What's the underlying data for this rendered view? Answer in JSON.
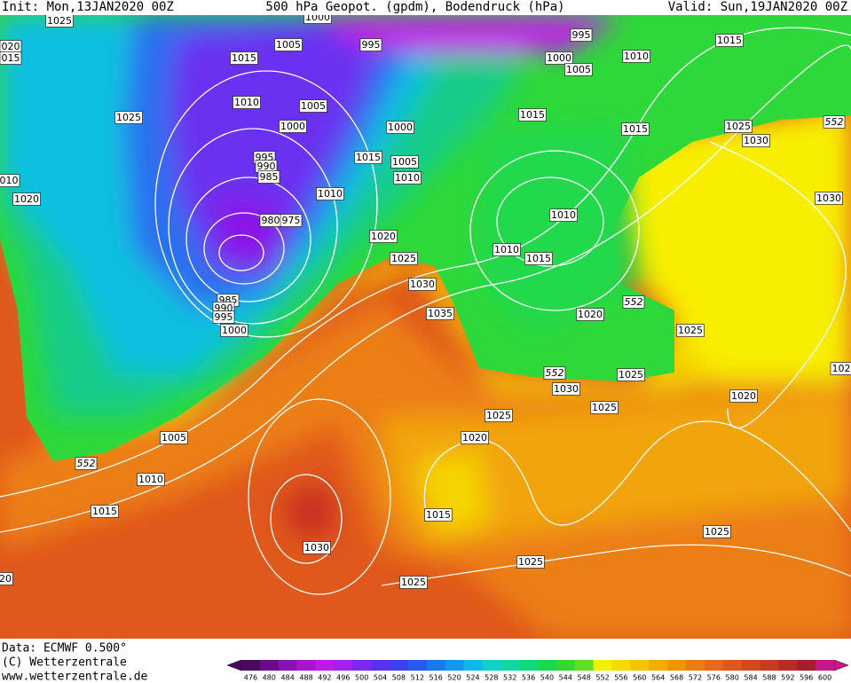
{
  "header": {
    "init": "Init: Mon,13JAN2020 00Z",
    "title": "500 hPa Geopot. (gpdm), Bodendruck (hPa)",
    "valid": "Valid: Sun,19JAN2020 00Z"
  },
  "footer": {
    "data": "Data: ECMWF   0.500°",
    "copyright": "(C) Wetterzentrale",
    "url": "www.wetterzentrale.de"
  },
  "colorbar": {
    "labels": [
      476,
      480,
      484,
      488,
      492,
      496,
      500,
      504,
      508,
      512,
      516,
      520,
      524,
      528,
      532,
      536,
      540,
      544,
      548,
      552,
      556,
      560,
      564,
      568,
      572,
      576,
      580,
      584,
      588,
      592,
      596,
      600
    ],
    "colors": [
      "#4a0a5c",
      "#6a0c8a",
      "#8a10b0",
      "#a814d0",
      "#c018e8",
      "#a020f0",
      "#7c28f0",
      "#5a30f0",
      "#3a40f0",
      "#2858f0",
      "#1878f0",
      "#1098f0",
      "#10b8e8",
      "#10d0c8",
      "#10d8a0",
      "#10d878",
      "#18d850",
      "#30d830",
      "#60e020",
      "#f0f000",
      "#f4dc00",
      "#f4c400",
      "#f4ac00",
      "#f09400",
      "#ec7c10",
      "#e66818",
      "#e0561c",
      "#d44820",
      "#c83c22",
      "#b82c28",
      "#a81c30",
      "#c81888"
    ]
  },
  "isobar_labels": [
    1025,
    1000,
    1005,
    995,
    995,
    1015,
    1015,
    1000,
    1005,
    1010,
    1025,
    1010,
    1005,
    1000,
    1000,
    1015,
    1015,
    1025,
    1030,
    995,
    990,
    985,
    1015,
    1005,
    1010,
    1010,
    1020,
    1010,
    1030,
    980,
    975,
    1020,
    1010,
    1015,
    1025,
    1030,
    985,
    990,
    995,
    1000,
    1035,
    552,
    1020,
    1025,
    552,
    1025,
    1030,
    1025,
    1020,
    1025,
    1020,
    1005,
    552,
    1010,
    1015,
    1015,
    1030,
    1025,
    1025,
    1025,
    552,
    "020",
    "015",
    "010",
    "20",
    "102"
  ]
}
